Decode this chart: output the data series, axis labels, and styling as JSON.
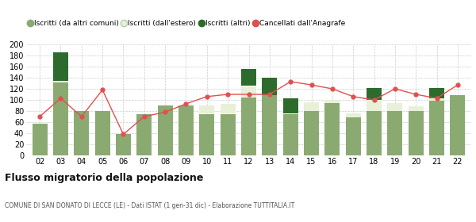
{
  "years": [
    "02",
    "03",
    "04",
    "05",
    "06",
    "07",
    "08",
    "09",
    "10",
    "11",
    "12",
    "13",
    "14",
    "15",
    "16",
    "17",
    "18",
    "19",
    "20",
    "21",
    "22"
  ],
  "iscritti_altri_comuni": [
    57,
    132,
    80,
    80,
    38,
    75,
    90,
    90,
    75,
    75,
    105,
    108,
    75,
    80,
    95,
    68,
    80,
    80,
    80,
    98,
    108
  ],
  "iscritti_estero": [
    0,
    2,
    0,
    0,
    0,
    0,
    0,
    0,
    15,
    18,
    20,
    0,
    0,
    15,
    5,
    8,
    20,
    14,
    8,
    5,
    0
  ],
  "iscritti_altri": [
    0,
    52,
    0,
    0,
    0,
    0,
    0,
    0,
    0,
    0,
    30,
    32,
    28,
    0,
    0,
    0,
    22,
    0,
    0,
    18,
    0
  ],
  "cancellati": [
    70,
    103,
    70,
    118,
    38,
    70,
    78,
    93,
    106,
    110,
    110,
    110,
    133,
    127,
    120,
    106,
    100,
    120,
    110,
    103,
    127
  ],
  "color_altri_comuni": "#8aaa72",
  "color_estero": "#e8f0d8",
  "color_altri": "#2d6b2d",
  "color_cancellati": "#e05050",
  "bg_color": "#ffffff",
  "grid_color": "#cccccc",
  "title": "Flusso migratorio della popolazione",
  "subtitle": "COMUNE DI SAN DONATO DI LECCE (LE) - Dati ISTAT (1 gen-31 dic) - Elaborazione TUTTITALIA.IT",
  "legend_labels": [
    "Iscritti (da altri comuni)",
    "Iscritti (dall'estero)",
    "Iscritti (altri)",
    "Cancellati dall'Anagrafe"
  ],
  "ylim": [
    0,
    200
  ],
  "yticks": [
    0,
    20,
    40,
    60,
    80,
    100,
    120,
    140,
    160,
    180,
    200
  ]
}
